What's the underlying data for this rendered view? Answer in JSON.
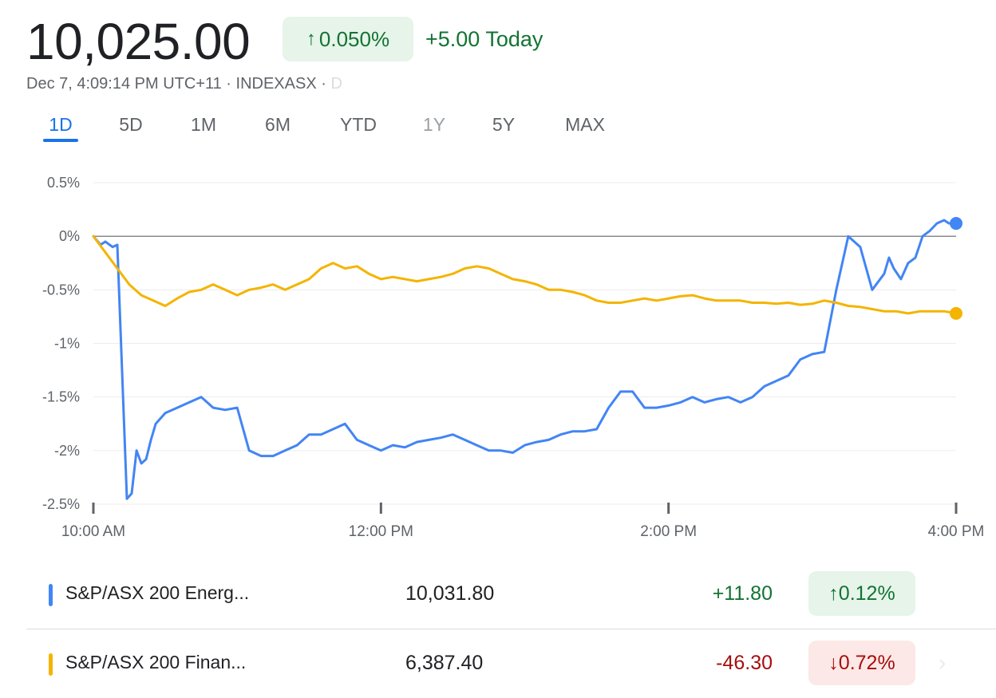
{
  "header": {
    "price": "10,025.00",
    "change_percent": "0.050%",
    "change_arrow": "↑",
    "change_today": "+5.00 Today",
    "meta": "Dec 7, 4:09:14 PM UTC+11 · INDEXASX · ",
    "meta_fade": "D"
  },
  "tabs": [
    "1D",
    "5D",
    "1M",
    "6M",
    "YTD",
    "1Y",
    "5Y",
    "MAX"
  ],
  "active_tab": "1D",
  "colors": {
    "energy": "#4285f4",
    "financials": "#f4b400",
    "positive": "#137333",
    "negative": "#a50e0e"
  },
  "chart_data": {
    "type": "line",
    "y_ticks": [
      "0.5%",
      "0%",
      "-0.5%",
      "-1%",
      "-1.5%",
      "-2%",
      "-2.5%"
    ],
    "x_ticks": [
      "10:00 AM",
      "12:00 PM",
      "2:00 PM",
      "4:00 PM"
    ],
    "ylim": [
      -2.5,
      0.5
    ],
    "xlim_minutes_after_10am": [
      0,
      360
    ],
    "series": [
      {
        "name": "S&P/ASX 200 Energ...",
        "color": "#4285f4",
        "x": [
          0,
          3,
          5,
          8,
          10,
          14,
          16,
          18,
          20,
          22,
          24,
          26,
          28,
          30,
          35,
          40,
          45,
          50,
          55,
          60,
          65,
          70,
          75,
          80,
          85,
          90,
          95,
          100,
          105,
          110,
          115,
          120,
          125,
          130,
          135,
          140,
          145,
          150,
          155,
          160,
          165,
          170,
          175,
          180,
          185,
          190,
          195,
          200,
          205,
          210,
          215,
          220,
          225,
          230,
          235,
          240,
          245,
          250,
          255,
          260,
          265,
          270,
          275,
          280,
          285,
          290,
          295,
          300,
          305,
          310,
          315,
          320,
          325,
          330,
          332,
          334,
          337,
          340,
          343,
          346,
          349,
          352,
          355,
          357,
          360
        ],
        "values": [
          0,
          -0.08,
          -0.05,
          -0.1,
          -0.08,
          -2.45,
          -2.4,
          -2.0,
          -2.12,
          -2.08,
          -1.9,
          -1.75,
          -1.7,
          -1.65,
          -1.6,
          -1.55,
          -1.5,
          -1.6,
          -1.62,
          -1.6,
          -2.0,
          -2.05,
          -2.05,
          -2.0,
          -1.95,
          -1.85,
          -1.85,
          -1.8,
          -1.75,
          -1.9,
          -1.95,
          -2.0,
          -1.95,
          -1.97,
          -1.92,
          -1.9,
          -1.88,
          -1.85,
          -1.9,
          -1.95,
          -2.0,
          -2.0,
          -2.02,
          -1.95,
          -1.92,
          -1.9,
          -1.85,
          -1.82,
          -1.82,
          -1.8,
          -1.6,
          -1.45,
          -1.45,
          -1.6,
          -1.6,
          -1.58,
          -1.55,
          -1.5,
          -1.55,
          -1.52,
          -1.5,
          -1.55,
          -1.5,
          -1.4,
          -1.35,
          -1.3,
          -1.15,
          -1.1,
          -1.08,
          -0.5,
          0.0,
          -0.1,
          -0.5,
          -0.35,
          -0.2,
          -0.3,
          -0.4,
          -0.25,
          -0.2,
          0.0,
          0.05,
          0.12,
          0.15,
          0.12,
          0.12
        ]
      },
      {
        "name": "S&P/ASX 200 Finan...",
        "color": "#f4b400",
        "x": [
          0,
          5,
          10,
          15,
          20,
          25,
          30,
          35,
          40,
          45,
          50,
          55,
          60,
          65,
          70,
          75,
          80,
          85,
          90,
          95,
          100,
          105,
          110,
          115,
          120,
          125,
          130,
          135,
          140,
          145,
          150,
          155,
          160,
          165,
          170,
          175,
          180,
          185,
          190,
          195,
          200,
          205,
          210,
          215,
          220,
          225,
          230,
          235,
          240,
          245,
          250,
          255,
          260,
          265,
          270,
          275,
          280,
          285,
          290,
          295,
          300,
          305,
          310,
          315,
          320,
          325,
          330,
          335,
          340,
          345,
          350,
          355,
          360
        ],
        "values": [
          0,
          -0.15,
          -0.3,
          -0.45,
          -0.55,
          -0.6,
          -0.65,
          -0.58,
          -0.52,
          -0.5,
          -0.45,
          -0.5,
          -0.55,
          -0.5,
          -0.48,
          -0.45,
          -0.5,
          -0.45,
          -0.4,
          -0.3,
          -0.25,
          -0.3,
          -0.28,
          -0.35,
          -0.4,
          -0.38,
          -0.4,
          -0.42,
          -0.4,
          -0.38,
          -0.35,
          -0.3,
          -0.28,
          -0.3,
          -0.35,
          -0.4,
          -0.42,
          -0.45,
          -0.5,
          -0.5,
          -0.52,
          -0.55,
          -0.6,
          -0.62,
          -0.62,
          -0.6,
          -0.58,
          -0.6,
          -0.58,
          -0.56,
          -0.55,
          -0.58,
          -0.6,
          -0.6,
          -0.6,
          -0.62,
          -0.62,
          -0.63,
          -0.62,
          -0.64,
          -0.63,
          -0.6,
          -0.62,
          -0.65,
          -0.66,
          -0.68,
          -0.7,
          -0.7,
          -0.72,
          -0.7,
          -0.7,
          -0.7,
          -0.72
        ]
      }
    ]
  },
  "rows": [
    {
      "name": "S&P/ASX 200 Energ...",
      "value": "10,031.80",
      "change": "+11.80",
      "percent": "0.12%",
      "arrow": "↑"
    },
    {
      "name": "S&P/ASX 200 Finan...",
      "value": "6,387.40",
      "change": "-46.30",
      "percent": "0.72%",
      "arrow": "↓"
    }
  ],
  "icons": {
    "row_chevron": "chevron-right-icon",
    "chevron_glyph": "›"
  }
}
